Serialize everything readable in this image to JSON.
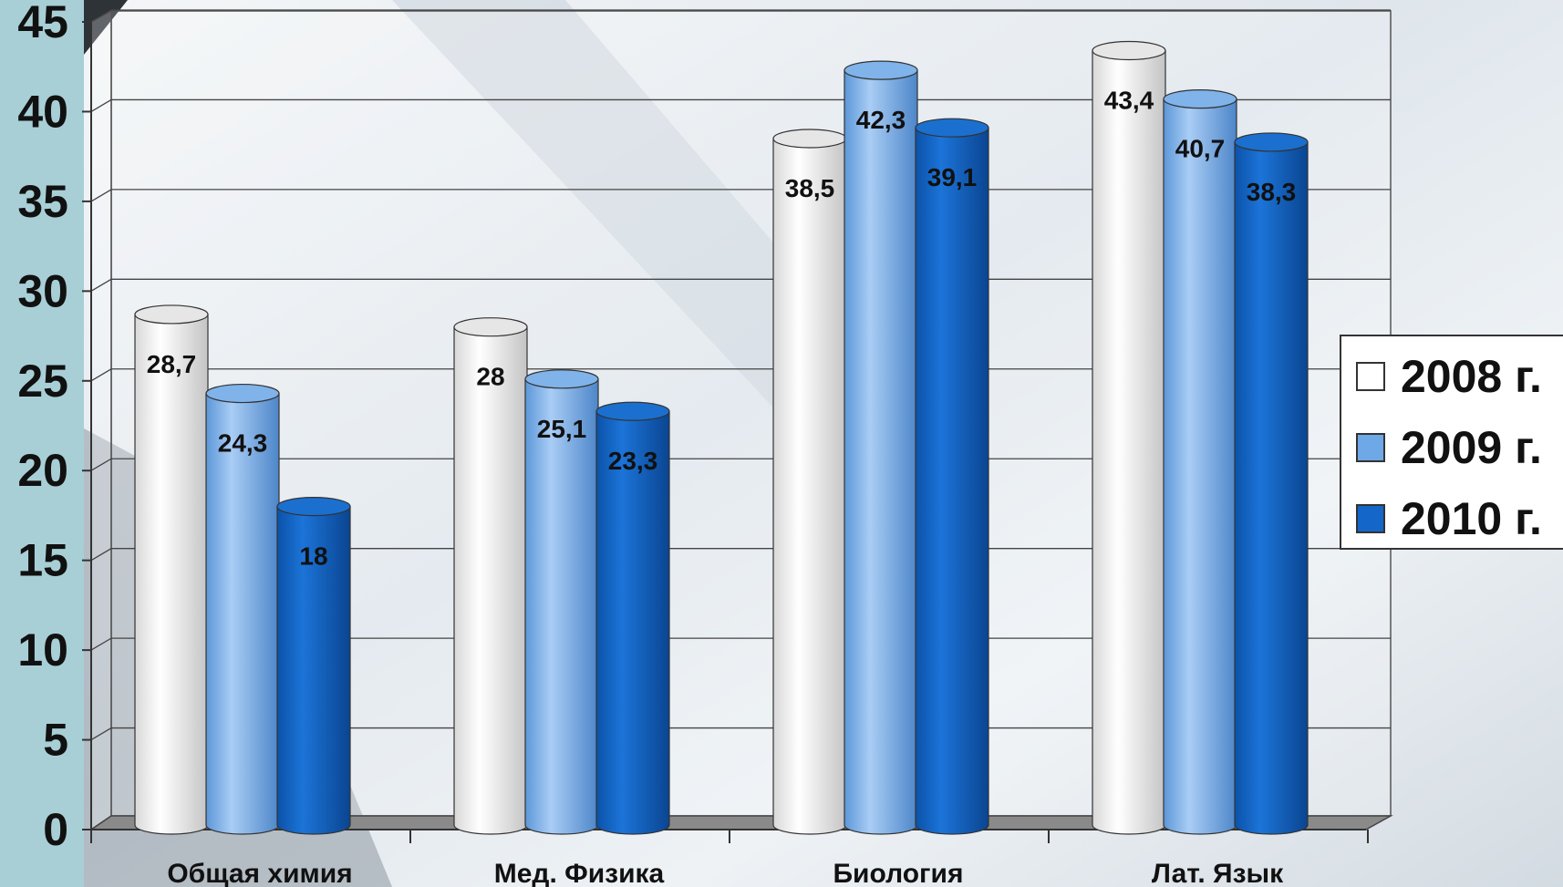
{
  "chart_data": {
    "type": "bar",
    "categories": [
      "Общая химия",
      "Мед. Физика",
      "Биология",
      "Лат. Язык"
    ],
    "series": [
      {
        "name": "2008 г.",
        "values": [
          28.7,
          28,
          38.5,
          43.4
        ],
        "labels": [
          "28,7",
          "28",
          "38,5",
          "43,4"
        ],
        "color": "#ffffff"
      },
      {
        "name": "2009 г.",
        "values": [
          24.3,
          25.1,
          42.3,
          40.7
        ],
        "labels": [
          "24,3",
          "25,1",
          "42,3",
          "40,7"
        ],
        "color": "#6fa8e6"
      },
      {
        "name": "2010 г.",
        "values": [
          18,
          23.3,
          39.1,
          38.3
        ],
        "labels": [
          "18",
          "23,3",
          "39,1",
          "38,3"
        ],
        "color": "#1466c8"
      }
    ],
    "ylim": [
      0,
      45
    ],
    "yticks": [
      "0",
      "5",
      "10",
      "15",
      "20",
      "25",
      "30",
      "35",
      "40",
      "45"
    ],
    "grid": true,
    "legend_position": "right"
  }
}
